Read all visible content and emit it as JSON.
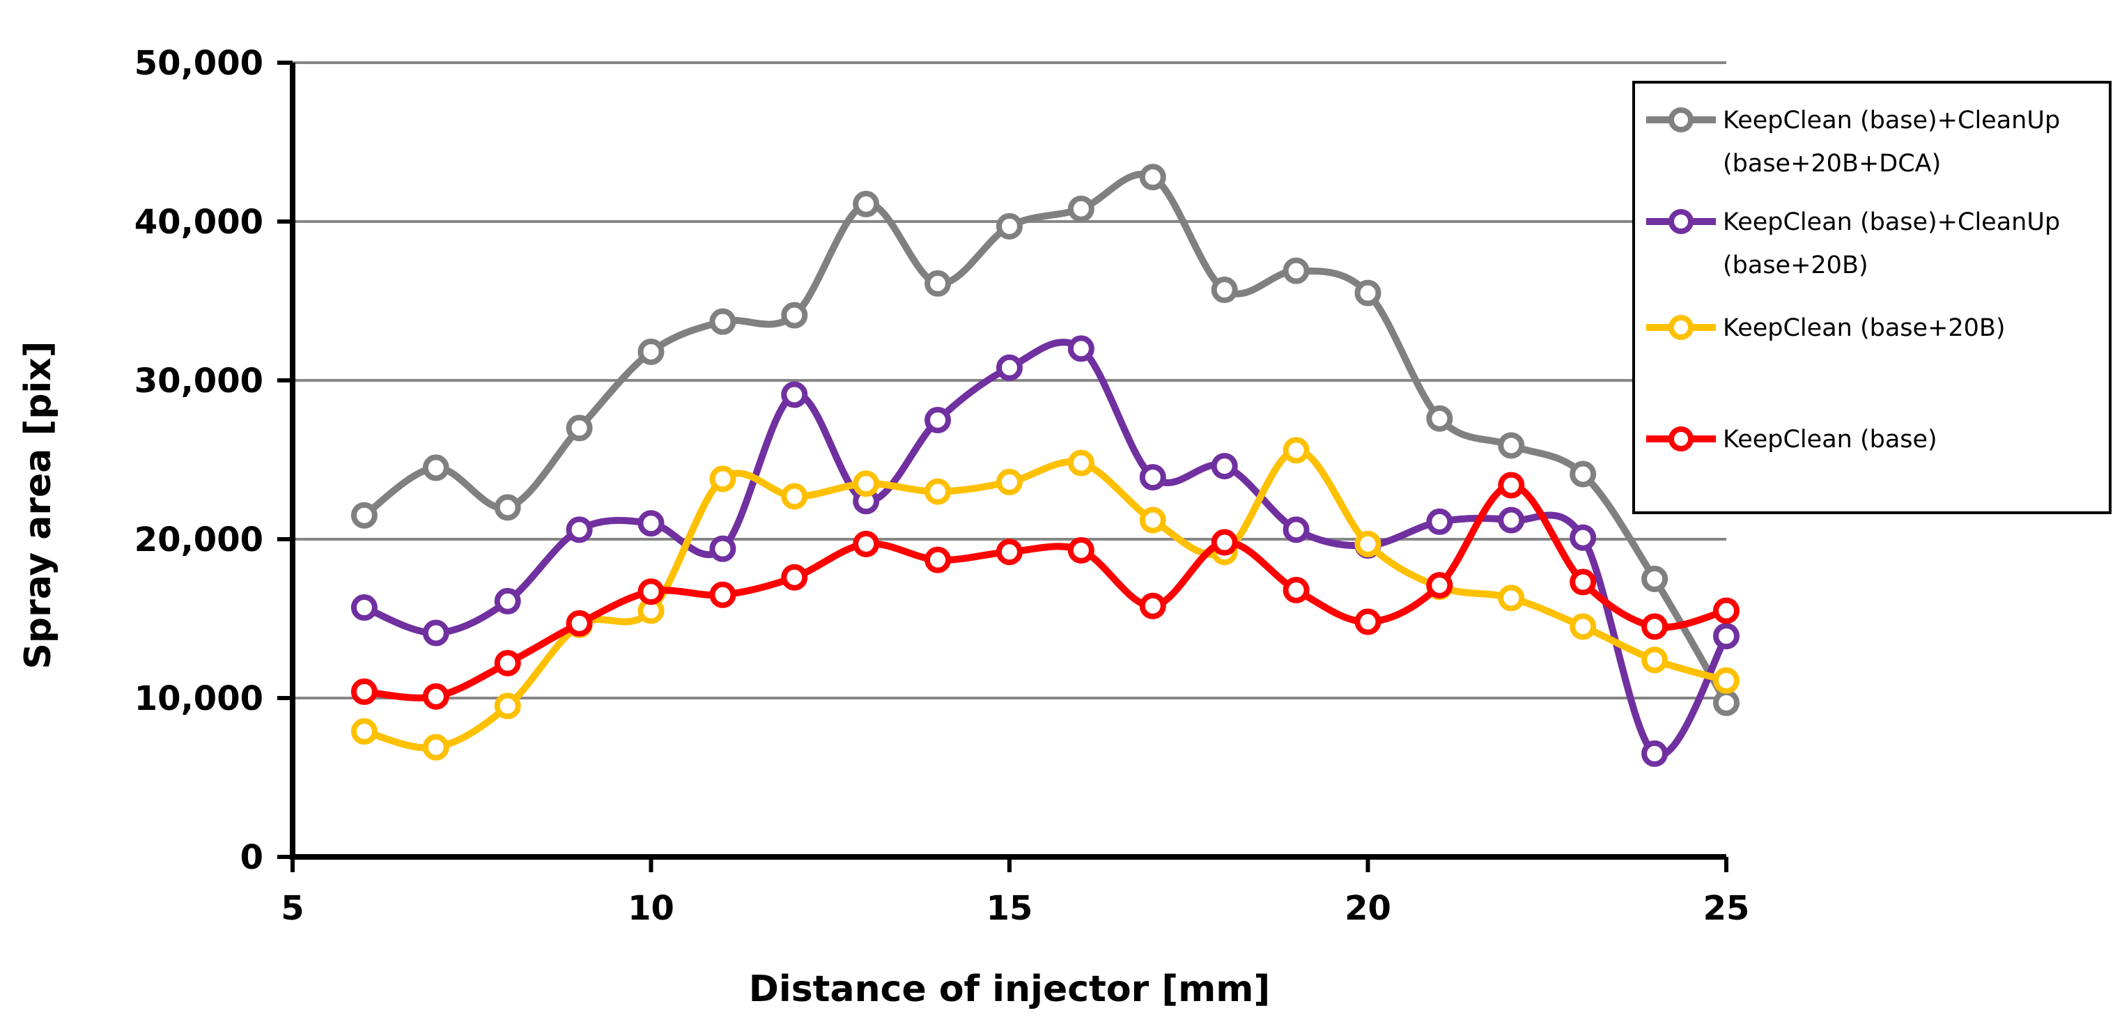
{
  "chart_data": {
    "type": "line",
    "title": "",
    "xlabel": "Distance of injector [mm]",
    "ylabel": "Spray area [pix]",
    "xlim": [
      5,
      25
    ],
    "ylim": [
      0,
      50000
    ],
    "xticks": [
      5,
      10,
      15,
      20,
      25
    ],
    "yticks": [
      0,
      10000,
      20000,
      30000,
      40000,
      50000
    ],
    "ytick_labels": [
      "0",
      "10,000",
      "20,000",
      "30,000",
      "40,000",
      "50,000"
    ],
    "grid": "horizontal",
    "legend_position": "right",
    "x": [
      6,
      7,
      8,
      9,
      10,
      11,
      12,
      13,
      14,
      15,
      16,
      17,
      18,
      19,
      20,
      21,
      22,
      23,
      24,
      25
    ],
    "series": [
      {
        "name": "KeepClean (base)+CleanUp (base+20B+DCA)",
        "legend_lines": [
          "KeepClean (base)+CleanUp",
          "(base+20B+DCA)"
        ],
        "color": "#808080",
        "values": [
          21500,
          24500,
          22000,
          27000,
          31800,
          33700,
          34100,
          41100,
          36100,
          39700,
          40800,
          42800,
          35700,
          36900,
          35500,
          27600,
          25900,
          24100,
          17500,
          9700
        ]
      },
      {
        "name": "KeepClean (base)+CleanUp (base+20B)",
        "legend_lines": [
          "KeepClean (base)+CleanUp",
          "(base+20B)"
        ],
        "color": "#7030A0",
        "values": [
          15700,
          14100,
          16100,
          20600,
          21000,
          19400,
          29100,
          22400,
          27500,
          30800,
          32000,
          23900,
          24600,
          20600,
          19600,
          21100,
          21200,
          20100,
          6500,
          13900
        ]
      },
      {
        "name": "KeepClean (base+20B)",
        "legend_lines": [
          "KeepClean (base+20B)"
        ],
        "color": "#FFC000",
        "values": [
          7900,
          6900,
          9500,
          14600,
          15500,
          23800,
          22700,
          23500,
          23000,
          23600,
          24800,
          21200,
          19200,
          25600,
          19700,
          17000,
          16300,
          14500,
          12400,
          11100
        ]
      },
      {
        "name": "KeepClean (base)",
        "legend_lines": [
          "KeepClean (base)"
        ],
        "color": "#FF0000",
        "values": [
          10400,
          10100,
          12200,
          14700,
          16700,
          16500,
          17600,
          19700,
          18700,
          19200,
          19300,
          15800,
          19800,
          16800,
          14800,
          17100,
          23400,
          17300,
          14500,
          15500
        ]
      }
    ]
  }
}
